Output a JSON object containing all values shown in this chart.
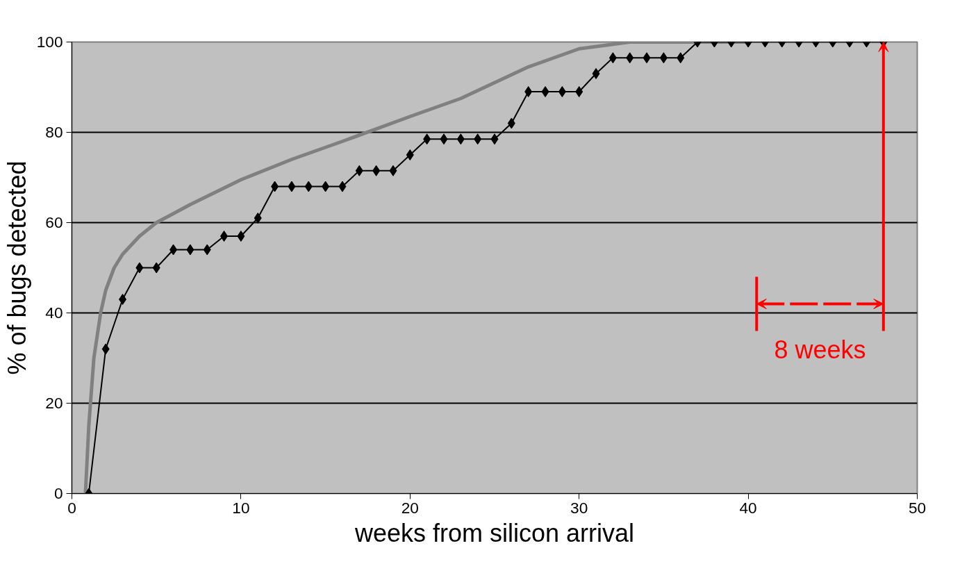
{
  "chart_data": {
    "type": "line",
    "xlabel": "weeks from silicon arrival",
    "ylabel": "% of bugs detected",
    "xlim": [
      0,
      50
    ],
    "ylim": [
      0,
      100
    ],
    "xticks": [
      0,
      10,
      20,
      30,
      40,
      50
    ],
    "yticks": [
      0,
      20,
      40,
      60,
      80,
      100
    ],
    "grid": "y",
    "series": [
      {
        "color": "#808080",
        "marker": "none",
        "x": [
          0.8,
          1,
          1.3,
          1.7,
          2,
          2.5,
          3,
          4,
          5,
          7,
          10,
          13,
          16,
          20,
          23,
          25,
          27,
          30,
          33,
          36,
          40
        ],
        "values": [
          0,
          15,
          30,
          40,
          45,
          50,
          53,
          57,
          60,
          64,
          69.5,
          74,
          78,
          83.5,
          87.5,
          91,
          94.5,
          98.5,
          100,
          100,
          100
        ]
      },
      {
        "color": "#000000",
        "marker": "diamond",
        "x": [
          1,
          2,
          3,
          4,
          5,
          6,
          7,
          8,
          9,
          10,
          11,
          12,
          13,
          14,
          15,
          16,
          17,
          18,
          19,
          20,
          21,
          22,
          23,
          24,
          25,
          26,
          27,
          28,
          29,
          30,
          31,
          32,
          33,
          34,
          35,
          36,
          37,
          38,
          39,
          40,
          41,
          42,
          43,
          44,
          45,
          46,
          47,
          48
        ],
        "values": [
          0,
          32,
          43,
          50,
          50,
          54,
          54,
          54,
          57,
          57,
          61,
          68,
          68,
          68,
          68,
          68,
          71.5,
          71.5,
          71.5,
          75,
          78.5,
          78.5,
          78.5,
          78.5,
          78.5,
          82,
          89,
          89,
          89,
          89,
          93,
          96.5,
          96.5,
          96.5,
          96.5,
          96.5,
          100,
          100,
          100,
          100,
          100,
          100,
          100,
          100,
          100,
          100,
          100,
          100
        ]
      }
    ],
    "annotations": [
      {
        "text": "8 weeks",
        "x": 48,
        "y": 100
      }
    ]
  }
}
